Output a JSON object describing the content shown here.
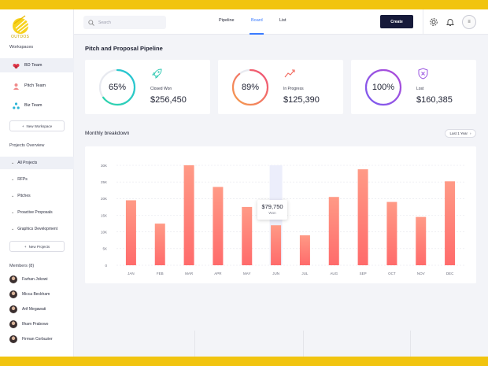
{
  "brand": {
    "name": "OUTDOS"
  },
  "sidebar": {
    "workspaces_title": "Workspaces",
    "workspaces": [
      {
        "label": "BD Team",
        "icon": "people-icon",
        "color": "#e2394b"
      },
      {
        "label": "Pitch Team",
        "icon": "person-icon",
        "color": "#f08a8a"
      },
      {
        "label": "Biz Team",
        "icon": "network-icon",
        "color": "#2bb5d6"
      }
    ],
    "new_workspace": "New Workspace",
    "projects_title": "Projects Overview",
    "projects": [
      {
        "label": "All Projects"
      },
      {
        "label": "RFPs"
      },
      {
        "label": "Pitches"
      },
      {
        "label": "Proactive Proposals"
      },
      {
        "label": "Graphics Development"
      }
    ],
    "new_projects": "New Projects",
    "members_title": "Members (8)",
    "members": [
      {
        "name": "Farhan Jokowi"
      },
      {
        "name": "Micca Beckham"
      },
      {
        "name": "Arif Megawati"
      },
      {
        "name": "Ilham Prabowo"
      },
      {
        "name": "Firman Corbuzier"
      }
    ]
  },
  "topbar": {
    "search_placeholder": "Search",
    "tabs": [
      {
        "label": "Pipeline"
      },
      {
        "label": "Board"
      },
      {
        "label": "List"
      }
    ],
    "active_tab": "Board",
    "create_label": "Create",
    "accent": "#3a7bff"
  },
  "main": {
    "title": "Pitch and Proposal Pipeline",
    "cards": [
      {
        "percent": 65,
        "percent_label": "65%",
        "label": "Closed Won",
        "value": "$256,450",
        "icon": "rocket-icon",
        "color_from": "#2fd6a8",
        "color_to": "#27c3d8"
      },
      {
        "percent": 89,
        "percent_label": "89%",
        "label": "In Progress",
        "value": "$125,390",
        "icon": "trending-up-icon",
        "color_from": "#f6a04d",
        "color_to": "#f04e79"
      },
      {
        "percent": 100,
        "percent_label": "100%",
        "label": "Lost",
        "value": "$160,385",
        "icon": "shield-x-icon",
        "color_from": "#7b5cf0",
        "color_to": "#b04bd8"
      }
    ],
    "breakdown_title": "Monthly breakdown",
    "period": "Last 1 Year",
    "tooltip": {
      "value": "$79,750",
      "label": "Won"
    }
  },
  "chart_data": {
    "type": "bar",
    "categories": [
      "JAN",
      "FEB",
      "MAR",
      "APR",
      "MAY",
      "JUN",
      "JUL",
      "AUG",
      "SEP",
      "OCT",
      "NOV",
      "DEC"
    ],
    "values": [
      19500,
      12500,
      30000,
      23500,
      17500,
      12000,
      9000,
      20500,
      28800,
      19000,
      14500,
      25200
    ],
    "ylim": [
      0,
      30000
    ],
    "yticks": [
      0,
      5000,
      10000,
      15000,
      20000,
      25000,
      30000
    ],
    "ytick_labels": [
      "0",
      "5K",
      "10K",
      "15K",
      "20K",
      "25K",
      "30K"
    ],
    "highlight_index": 5,
    "grid": true,
    "bar_color_top": "#ff9a86",
    "bar_color_bottom": "#ff6b6b"
  }
}
